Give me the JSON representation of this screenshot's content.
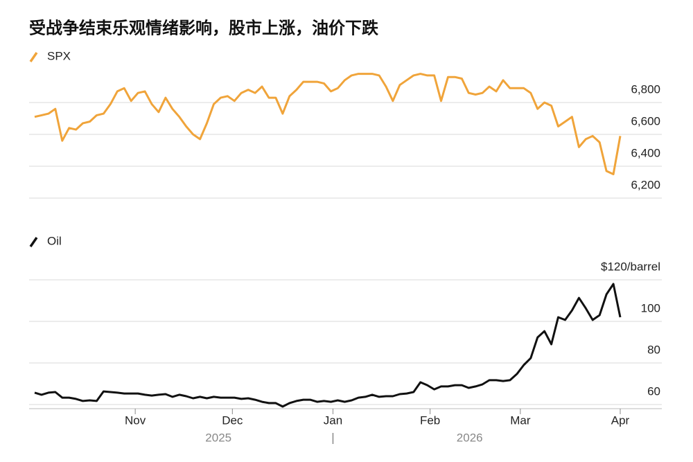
{
  "chart_data": [
    {
      "type": "line",
      "title": "受战争结束乐观情绪影响，股市上涨，油价下跌",
      "series": [
        {
          "name": "SPX",
          "color": "#f0a43a",
          "values": [
            6710,
            6720,
            6730,
            6760,
            6560,
            6640,
            6630,
            6670,
            6680,
            6720,
            6730,
            6790,
            6870,
            6890,
            6810,
            6860,
            6870,
            6790,
            6740,
            6830,
            6760,
            6710,
            6650,
            6600,
            6570,
            6670,
            6790,
            6830,
            6840,
            6810,
            6860,
            6880,
            6860,
            6900,
            6830,
            6830,
            6730,
            6840,
            6880,
            6930,
            6930,
            6930,
            6920,
            6870,
            6890,
            6940,
            6970,
            6980,
            6980,
            6980,
            6970,
            6900,
            6810,
            6910,
            6940,
            6970,
            6980,
            6970,
            6970,
            6810,
            6960,
            6960,
            6950,
            6860,
            6850,
            6860,
            6900,
            6870,
            6940,
            6890,
            6890,
            6890,
            6860,
            6760,
            6800,
            6780,
            6650,
            6680,
            6710,
            6520,
            6570,
            6590,
            6550,
            6370,
            6350,
            6590
          ]
        }
      ],
      "xlim": [
        0,
        85
      ],
      "ylim": [
        6200,
        7000
      ],
      "yticks": [
        {
          "value": 6200,
          "label": "6,200"
        },
        {
          "value": 6400,
          "label": "6,400"
        },
        {
          "value": 6600,
          "label": "6,600"
        },
        {
          "value": 6800,
          "label": "6,800"
        }
      ],
      "grid": true
    },
    {
      "type": "line",
      "series": [
        {
          "name": "Oil",
          "color": "#111111",
          "values": [
            65.7,
            64.7,
            65.7,
            66,
            63.3,
            63.3,
            62.7,
            61.7,
            62,
            61.7,
            66.3,
            66,
            65.7,
            65.3,
            65.3,
            65.3,
            64.7,
            64.3,
            64.7,
            65,
            63.7,
            64.7,
            64,
            63,
            63.7,
            63,
            63.7,
            63.3,
            63.3,
            63.3,
            62.7,
            63,
            62.3,
            61.3,
            60.7,
            60.7,
            59,
            60.7,
            61.7,
            62.3,
            62.3,
            61.3,
            61.7,
            61.3,
            62,
            61.3,
            62,
            63.3,
            63.7,
            64.7,
            63.7,
            64,
            64,
            65,
            65.3,
            66,
            70.7,
            69.3,
            67.3,
            68.7,
            68.7,
            69.3,
            69.3,
            68,
            68.7,
            69.7,
            71.7,
            71.7,
            71.3,
            71.7,
            74.7,
            79,
            82.3,
            92.3,
            95.3,
            89,
            102,
            100.7,
            105.3,
            111.3,
            106.3,
            100.7,
            103,
            113,
            118,
            102
          ]
        }
      ],
      "xlim": [
        0,
        85
      ],
      "ylim": [
        58,
        125
      ],
      "yticks": [
        60,
        80,
        100,
        {
          "value": 120,
          "label": "$120/barrel"
        }
      ],
      "xticks": [
        {
          "value": 14.6,
          "label": "Nov"
        },
        {
          "value": 28.7,
          "label": "Dec"
        },
        {
          "value": 43.3,
          "label": "Jan"
        },
        {
          "value": 57.4,
          "label": "Feb"
        },
        {
          "value": 70.5,
          "label": "Mar"
        },
        {
          "value": 85,
          "label": "Apr"
        }
      ],
      "x_year_labels": [
        "2025",
        "2026"
      ],
      "grid": true
    }
  ]
}
